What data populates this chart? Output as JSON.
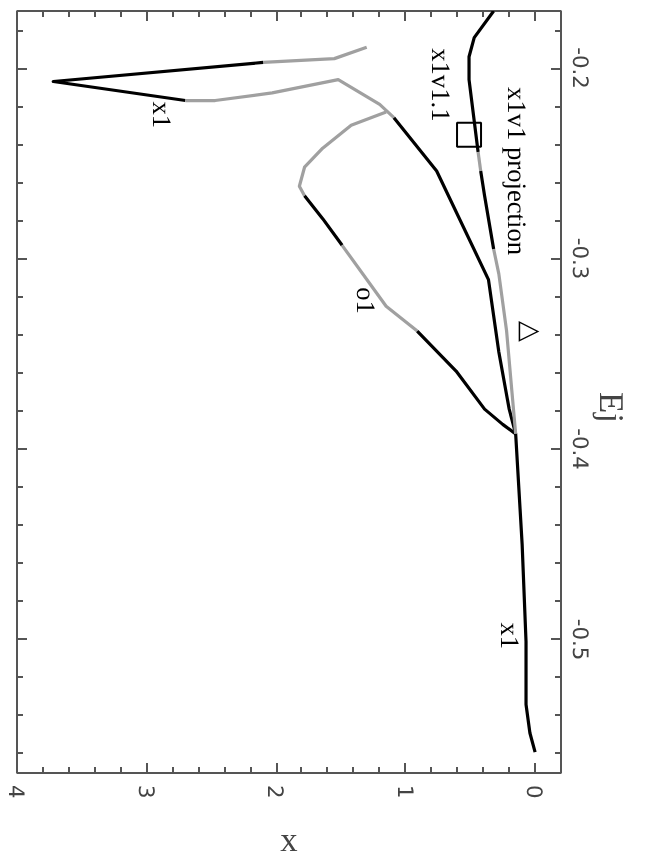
{
  "chart_data": {
    "type": "line",
    "xlabel": "x",
    "ylabel": "Ej",
    "xlim": [
      4,
      -0.2
    ],
    "ylim": [
      -0.57,
      -0.17
    ],
    "xticks": [
      4,
      3,
      2,
      1,
      0
    ],
    "yticks": [
      {
        "value": -0.5,
        "label": "-0.5"
      },
      {
        "value": -0.4,
        "label": "-0.4"
      },
      {
        "value": -0.3,
        "label": "-0.3"
      },
      {
        "value": -0.2,
        "label": "-0.2"
      }
    ],
    "grid": false,
    "marker": "none",
    "line_style": "solid",
    "series": [
      {
        "color": "#a0a0a0",
        "x": [
          1.3,
          1.55,
          2.1
        ],
        "values": [
          -0.189,
          -0.195,
          -0.197
        ]
      },
      {
        "color": "#000000",
        "x": [
          2.1,
          3.72,
          2.7
        ],
        "values": [
          -0.197,
          -0.207,
          -0.217
        ]
      },
      {
        "color": "#a0a0a0",
        "x": [
          2.7,
          2.47,
          2.03,
          1.52,
          1.2,
          1.09
        ],
        "values": [
          -0.217,
          -0.217,
          -0.213,
          -0.206,
          -0.219,
          -0.226
        ]
      },
      {
        "color": "#000000",
        "x": [
          1.09,
          0.76,
          0.36,
          0.28,
          0.2,
          0.15,
          0.1,
          0.07,
          0.07,
          0.04,
          0.0
        ],
        "values": [
          -0.226,
          -0.254,
          -0.311,
          -0.349,
          -0.379,
          -0.392,
          -0.45,
          -0.501,
          -0.534,
          -0.549,
          -0.559
        ]
      },
      {
        "color": "#a0a0a0",
        "x": [
          1.15,
          1.42,
          1.64,
          1.78,
          1.82,
          1.78
        ],
        "values": [
          -0.223,
          -0.23,
          -0.242,
          -0.252,
          -0.262,
          -0.267
        ]
      },
      {
        "color": "#000000",
        "x": [
          1.78,
          1.64,
          1.49
        ],
        "values": [
          -0.267,
          -0.279,
          -0.293
        ]
      },
      {
        "color": "#a0a0a0",
        "x": [
          1.49,
          1.15,
          0.91
        ],
        "values": [
          -0.293,
          -0.325,
          -0.338
        ]
      },
      {
        "color": "#000000",
        "x": [
          0.91,
          0.61,
          0.39,
          0.25,
          0.15
        ],
        "values": [
          -0.338,
          -0.359,
          -0.379,
          -0.387,
          -0.392
        ]
      },
      {
        "color": "#000000",
        "x": [
          0.32,
          0.47,
          0.51,
          0.51,
          0.44
        ],
        "values": [
          -0.17,
          -0.184,
          -0.194,
          -0.206,
          -0.244
        ]
      },
      {
        "color": "#a0a0a0",
        "x": [
          0.44,
          0.42
        ],
        "values": [
          -0.244,
          -0.254
        ]
      },
      {
        "color": "#000000",
        "x": [
          0.42,
          0.39,
          0.32
        ],
        "values": [
          -0.254,
          -0.267,
          -0.295
        ]
      },
      {
        "color": "#a0a0a0",
        "x": [
          0.32,
          0.28,
          0.22,
          0.18,
          0.15
        ],
        "values": [
          -0.295,
          -0.308,
          -0.338,
          -0.369,
          -0.392
        ]
      },
      {
        "type": "scatter",
        "marker": "square",
        "color": "#000000",
        "x": [
          0.51
        ],
        "values": [
          -0.235
        ]
      }
    ],
    "annotations": [
      {
        "text": "x1",
        "x": 2.88,
        "y": -0.215
      },
      {
        "text": "x1v1.1",
        "x": 0.51,
        "y": -0.235
      },
      {
        "text": "x1v1 projection",
        "x": 0.42,
        "y": -0.254
      },
      {
        "text": "o1",
        "x": 1.18,
        "y": -0.322
      },
      {
        "text": "x1",
        "x": 0.07,
        "y": -0.498
      },
      {
        "text": "△",
        "x": 0.22,
        "y": -0.338
      }
    ]
  }
}
